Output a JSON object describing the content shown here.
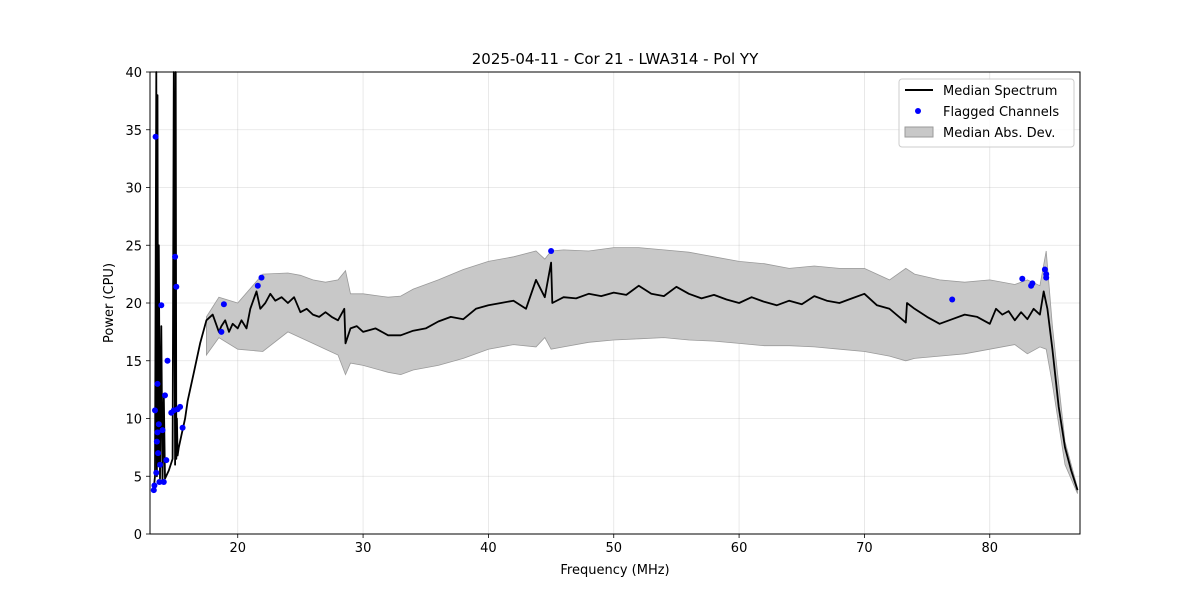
{
  "chart_data": {
    "type": "line",
    "title": "2025-04-11 - Cor 21 - LWA314 - Pol YY",
    "xlabel": "Frequency (MHz)",
    "ylabel": "Power (CPU)",
    "xlim": [
      13.0,
      87.2
    ],
    "ylim": [
      0,
      40
    ],
    "xticks": [
      20,
      30,
      40,
      50,
      60,
      70,
      80
    ],
    "yticks": [
      0,
      5,
      10,
      15,
      20,
      25,
      30,
      35,
      40
    ],
    "grid": true,
    "legend_position": "top-right",
    "colors": {
      "median": "#000000",
      "flagged": "#0000ff",
      "mad": "#c8c8c8",
      "mad_edge": "#9a9a9a"
    },
    "legend": [
      {
        "label": "Median Spectrum",
        "kind": "line"
      },
      {
        "label": "Flagged Channels",
        "kind": "marker"
      },
      {
        "label": "Median Abs. Dev.",
        "kind": "band"
      }
    ],
    "series": [
      {
        "name": "Median Spectrum",
        "x": [
          13.3,
          13.4,
          13.5,
          13.55,
          13.6,
          13.65,
          13.7,
          13.8,
          13.9,
          14.0,
          14.1,
          14.2,
          14.5,
          14.8,
          14.9,
          15.0,
          15.05,
          15.1,
          15.15,
          15.2,
          15.3,
          15.5,
          15.8,
          16.0,
          16.5,
          17.0,
          17.5,
          18.0,
          18.5,
          18.7,
          19.0,
          19.3,
          19.6,
          20.0,
          20.3,
          20.7,
          21.0,
          21.5,
          21.8,
          22.2,
          22.6,
          23.0,
          23.5,
          24.0,
          24.5,
          25.0,
          25.5,
          26.0,
          26.5,
          27.0,
          27.5,
          28.0,
          28.5,
          28.6,
          29.0,
          29.5,
          30.0,
          31.0,
          32.0,
          33.0,
          34.0,
          35.0,
          36.0,
          37.0,
          38.0,
          39.0,
          40.0,
          41.0,
          42.0,
          43.0,
          43.8,
          44.5,
          45.0,
          45.1,
          46.0,
          47.0,
          48.0,
          49.0,
          50.0,
          51.0,
          52.0,
          53.0,
          54.0,
          55.0,
          56.0,
          57.0,
          58.0,
          59.0,
          60.0,
          61.0,
          62.0,
          63.0,
          64.0,
          65.0,
          66.0,
          67.0,
          68.0,
          69.0,
          70.0,
          71.0,
          72.0,
          73.3,
          73.4,
          74.0,
          75.0,
          76.0,
          77.0,
          78.0,
          79.0,
          80.0,
          80.5,
          81.0,
          81.5,
          82.0,
          82.5,
          83.0,
          83.5,
          84.0,
          84.3,
          84.6,
          85.0,
          85.5,
          86.0,
          86.5,
          87.0
        ],
        "y": [
          4.0,
          5.0,
          40.0,
          5.0,
          38.0,
          6.0,
          25.0,
          4.8,
          18.0,
          4.5,
          12.0,
          4.8,
          5.5,
          6.5,
          40.0,
          6.0,
          40.0,
          6.5,
          10.0,
          6.8,
          7.5,
          8.5,
          10.0,
          11.5,
          14.0,
          16.5,
          18.5,
          19.0,
          17.5,
          18.0,
          18.5,
          17.5,
          18.2,
          17.8,
          18.5,
          17.8,
          19.5,
          21.0,
          19.5,
          20.0,
          20.8,
          20.2,
          20.5,
          20.0,
          20.5,
          19.2,
          19.5,
          19.0,
          18.8,
          19.2,
          18.8,
          18.5,
          19.5,
          16.5,
          17.8,
          18.0,
          17.5,
          17.8,
          17.2,
          17.2,
          17.6,
          17.8,
          18.4,
          18.8,
          18.6,
          19.5,
          19.8,
          20.0,
          20.2,
          19.5,
          22.0,
          20.5,
          23.5,
          20.0,
          20.5,
          20.4,
          20.8,
          20.6,
          20.9,
          20.7,
          21.5,
          20.8,
          20.6,
          21.4,
          20.8,
          20.4,
          20.7,
          20.3,
          20.0,
          20.5,
          20.1,
          19.8,
          20.2,
          19.9,
          20.6,
          20.2,
          20.0,
          20.4,
          20.8,
          19.8,
          19.5,
          18.3,
          20.0,
          19.5,
          18.8,
          18.2,
          18.6,
          19.0,
          18.8,
          18.2,
          19.5,
          19.0,
          19.3,
          18.5,
          19.2,
          18.6,
          19.5,
          19.0,
          21.0,
          19.5,
          16.0,
          11.0,
          7.5,
          5.5,
          3.8
        ]
      },
      {
        "name": "Median Abs. Dev.",
        "x": [
          17.5,
          18.5,
          20.0,
          22.0,
          24.0,
          25.0,
          26.0,
          27.0,
          28.0,
          28.6,
          29.0,
          30.0,
          32.0,
          33.0,
          34.0,
          36.0,
          38.0,
          40.0,
          42.0,
          43.8,
          44.5,
          45.0,
          46.0,
          48.0,
          50.0,
          52.0,
          54.0,
          56.0,
          58.0,
          60.0,
          62.0,
          64.0,
          66.0,
          68.0,
          70.0,
          72.0,
          73.3,
          74.0,
          76.0,
          78.0,
          80.0,
          82.0,
          83.0,
          84.0,
          84.5,
          85.0,
          86.0,
          87.0
        ],
        "upper": [
          18.8,
          20.5,
          20.0,
          22.5,
          22.6,
          22.4,
          22.0,
          21.8,
          22.0,
          22.8,
          20.8,
          20.8,
          20.5,
          20.6,
          21.2,
          22.0,
          22.9,
          23.6,
          24.0,
          24.5,
          23.8,
          24.5,
          24.6,
          24.5,
          24.8,
          24.8,
          24.6,
          24.4,
          24.0,
          23.6,
          23.4,
          23.0,
          23.2,
          23.0,
          23.0,
          22.0,
          23.0,
          22.5,
          22.0,
          21.8,
          22.0,
          21.6,
          22.0,
          21.5,
          24.5,
          18.0,
          8.0,
          4.0
        ],
        "lower": [
          15.5,
          17.0,
          16.0,
          15.8,
          17.5,
          17.0,
          16.5,
          16.0,
          15.5,
          13.8,
          14.8,
          14.6,
          14.0,
          13.8,
          14.2,
          14.6,
          15.2,
          16.0,
          16.4,
          16.2,
          17.0,
          16.0,
          16.2,
          16.6,
          16.8,
          16.9,
          17.0,
          16.8,
          16.7,
          16.5,
          16.3,
          16.3,
          16.2,
          16.0,
          15.8,
          15.4,
          15.0,
          15.2,
          15.4,
          15.6,
          16.0,
          16.4,
          15.6,
          16.2,
          16.0,
          13.0,
          6.0,
          3.5
        ]
      },
      {
        "name": "Flagged Channels",
        "x": [
          13.3,
          13.35,
          13.4,
          13.45,
          13.5,
          13.55,
          13.6,
          13.6,
          13.65,
          13.7,
          13.75,
          13.8,
          13.9,
          14.0,
          14.1,
          14.2,
          14.3,
          14.4,
          14.7,
          14.9,
          15.0,
          15.1,
          15.2,
          15.4,
          15.6,
          18.7,
          18.9,
          21.6,
          21.9,
          45.0,
          77.0,
          82.6,
          83.3,
          83.4,
          84.4,
          84.5,
          84.5
        ],
        "y": [
          3.8,
          4.2,
          10.7,
          34.4,
          5.3,
          8.0,
          8.8,
          13.0,
          7.0,
          9.5,
          4.5,
          6.0,
          19.8,
          9.0,
          4.5,
          12.0,
          6.4,
          15.0,
          10.5,
          10.7,
          24.0,
          21.4,
          10.8,
          11.0,
          9.2,
          17.5,
          19.9,
          21.5,
          22.2,
          24.5,
          20.3,
          22.1,
          21.5,
          21.7,
          22.9,
          22.5,
          22.2
        ]
      }
    ]
  }
}
